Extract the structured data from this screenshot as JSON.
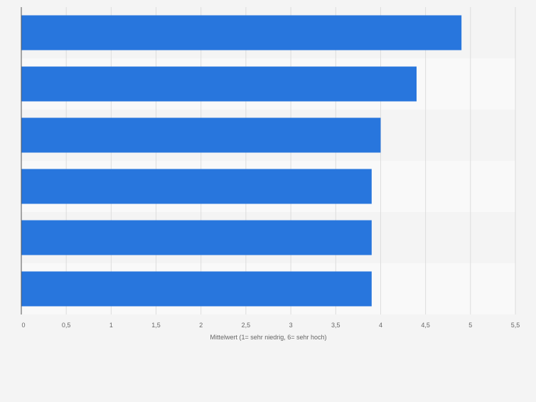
{
  "chart_data": {
    "type": "bar",
    "orientation": "horizontal",
    "categories": [
      "",
      "",
      "",
      "",
      "",
      ""
    ],
    "values": [
      4.9,
      4.4,
      4.0,
      3.9,
      3.9,
      3.9
    ],
    "title": "",
    "xlabel": "Mittelwert (1= sehr niedrig, 6= sehr hoch)",
    "ylabel": "",
    "xlim": [
      0,
      5.5
    ],
    "x_ticks": [
      0,
      0.5,
      1,
      1.5,
      2,
      2.5,
      3,
      3.5,
      4,
      4.5,
      5,
      5.5
    ],
    "x_tick_labels": [
      "0",
      "0,5",
      "1",
      "1,5",
      "2",
      "2,5",
      "3",
      "3,5",
      "4",
      "4,5",
      "5",
      "5,5"
    ],
    "grid": "vertical",
    "legend": "none",
    "colors": {
      "bar": "#2876dd",
      "band_light": "#f4f4f4",
      "band_lighter": "#f9f9f9",
      "grid": "#dddddd",
      "axis": "#555555",
      "text": "#666666",
      "background": "#f4f4f4"
    }
  }
}
